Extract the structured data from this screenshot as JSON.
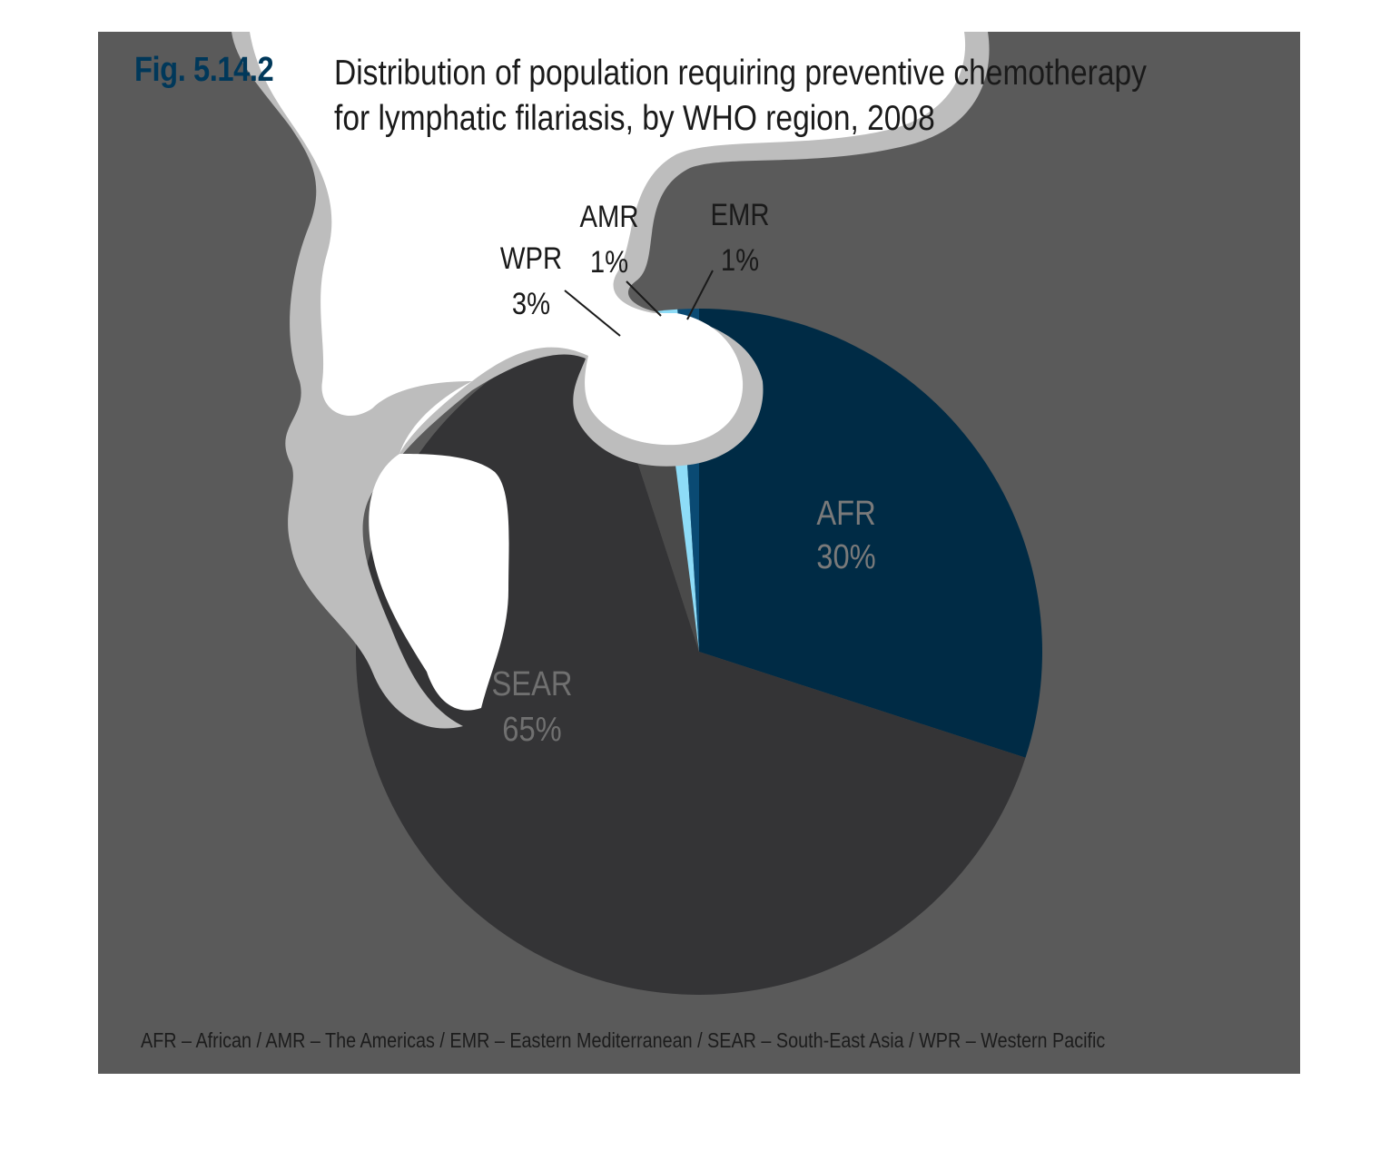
{
  "figure": {
    "number": "Fig. 5.14.2",
    "title_line1": "Distribution of population requiring preventive chemotherapy",
    "title_line2": "for lymphatic filariasis, by WHO region, 2008"
  },
  "footnote": "AFR – African / AMR – The Americas / EMR – Eastern Mediterranean / SEAR – South-East Asia / WPR – Western Pacific",
  "colors": {
    "panel_background": "#5a5a5a",
    "figure_number": "#00385a",
    "smoke_outer": "#bdbdbd",
    "smoke_inner": "#ffffff"
  },
  "chart_data": {
    "type": "pie",
    "title": "",
    "start": "12 o'clock",
    "direction": "clockwise",
    "slices": [
      {
        "label": "AFR",
        "value_label": "30%",
        "value": 30,
        "color": "#002b45",
        "text_color": "#7a7a7a"
      },
      {
        "label": "SEAR",
        "value_label": "65%",
        "value": 65,
        "color": "#343436",
        "text_color": "#707070"
      },
      {
        "label": "WPR",
        "value_label": "3%",
        "value": 3,
        "color": "#4a4a4a",
        "text_color": "#1a1a1a"
      },
      {
        "label": "AMR",
        "value_label": "1%",
        "value": 1,
        "color": "#8edcf7",
        "text_color": "#1a1a1a"
      },
      {
        "label": "EMR",
        "value_label": "1%",
        "value": 1,
        "color": "#0a4a73",
        "text_color": "#1a1a1a"
      }
    ],
    "legend": "none"
  }
}
